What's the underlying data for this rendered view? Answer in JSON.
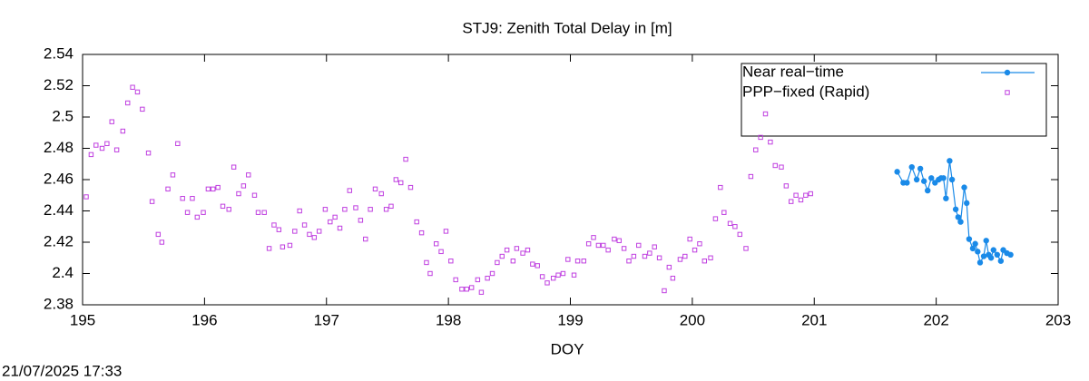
{
  "chart_data": {
    "type": "line",
    "title": "STJ9: Zenith Total Delay in [m]",
    "xlabel": "DOY",
    "timestamp": "21/07/2025 17:33",
    "xlim": [
      195,
      203
    ],
    "xticks": [
      195,
      196,
      197,
      198,
      199,
      200,
      201,
      202,
      203
    ],
    "ylim": [
      2.38,
      2.54
    ],
    "yticks": [
      2.38,
      2.4,
      2.42,
      2.44,
      2.46,
      2.48,
      2.5,
      2.52,
      2.54
    ],
    "grid": false,
    "legend": "top-right",
    "series": [
      {
        "name": "Near real−time",
        "color": "#1a8ae8",
        "line": true,
        "marker": "circle",
        "x": [
          201.68,
          201.73,
          201.76,
          201.8,
          201.84,
          201.87,
          201.9,
          201.93,
          201.96,
          201.99,
          202.02,
          202.04,
          202.06,
          202.08,
          202.11,
          202.13,
          202.16,
          202.18,
          202.2,
          202.23,
          202.25,
          202.27,
          202.3,
          202.32,
          202.34,
          202.36,
          202.39,
          202.41,
          202.43,
          202.45,
          202.47,
          202.5,
          202.53,
          202.55,
          202.58,
          202.61
        ],
        "values": [
          2.465,
          2.458,
          2.458,
          2.468,
          2.46,
          2.467,
          2.459,
          2.453,
          2.461,
          2.458,
          2.46,
          2.461,
          2.461,
          2.448,
          2.472,
          2.46,
          2.441,
          2.436,
          2.433,
          2.455,
          2.445,
          2.422,
          2.416,
          2.419,
          2.414,
          2.407,
          2.411,
          2.421,
          2.412,
          2.41,
          2.415,
          2.412,
          2.408,
          2.415,
          2.413,
          2.412
        ]
      },
      {
        "name": "PPP−fixed (Rapid)",
        "color": "#c040e0",
        "line": false,
        "marker": "square",
        "x": [
          195.03,
          195.07,
          195.11,
          195.16,
          195.2,
          195.24,
          195.28,
          195.33,
          195.37,
          195.41,
          195.45,
          195.49,
          195.54,
          195.57,
          195.62,
          195.65,
          195.7,
          195.74,
          195.78,
          195.82,
          195.86,
          195.9,
          195.94,
          195.99,
          196.03,
          196.07,
          196.11,
          196.15,
          196.2,
          196.24,
          196.28,
          196.32,
          196.36,
          196.41,
          196.44,
          196.49,
          196.53,
          196.57,
          196.61,
          196.64,
          196.7,
          196.74,
          196.78,
          196.82,
          196.86,
          196.9,
          196.94,
          196.99,
          197.03,
          197.07,
          197.11,
          197.15,
          197.19,
          197.24,
          197.28,
          197.32,
          197.36,
          197.4,
          197.45,
          197.49,
          197.53,
          197.57,
          197.61,
          197.65,
          197.69,
          197.74,
          197.78,
          197.82,
          197.85,
          197.9,
          197.94,
          197.98,
          198.02,
          198.06,
          198.11,
          198.15,
          198.19,
          198.24,
          198.27,
          198.32,
          198.36,
          198.4,
          198.44,
          198.48,
          198.53,
          198.56,
          198.61,
          198.65,
          198.69,
          198.73,
          198.77,
          198.81,
          198.86,
          198.9,
          198.94,
          198.98,
          199.03,
          199.06,
          199.11,
          199.15,
          199.19,
          199.23,
          199.27,
          199.31,
          199.36,
          199.4,
          199.44,
          199.48,
          199.52,
          199.56,
          199.61,
          199.65,
          199.69,
          199.73,
          199.77,
          199.81,
          199.84,
          199.9,
          199.94,
          199.98,
          200.02,
          200.06,
          200.1,
          200.15,
          200.19,
          200.23,
          200.26,
          200.31,
          200.35,
          200.39,
          200.44,
          200.48,
          200.52,
          200.56,
          200.6,
          200.64,
          200.68,
          200.73,
          200.77,
          200.81,
          200.85,
          200.89,
          200.93,
          200.97
        ],
        "values": [
          2.449,
          2.476,
          2.482,
          2.48,
          2.483,
          2.497,
          2.479,
          2.491,
          2.509,
          2.519,
          2.516,
          2.505,
          2.477,
          2.446,
          2.425,
          2.42,
          2.454,
          2.463,
          2.483,
          2.448,
          2.439,
          2.448,
          2.436,
          2.439,
          2.454,
          2.454,
          2.455,
          2.443,
          2.441,
          2.468,
          2.451,
          2.456,
          2.463,
          2.45,
          2.439,
          2.439,
          2.416,
          2.431,
          2.428,
          2.417,
          2.418,
          2.427,
          2.44,
          2.431,
          2.425,
          2.423,
          2.427,
          2.441,
          2.433,
          2.436,
          2.429,
          2.441,
          2.453,
          2.442,
          2.434,
          2.422,
          2.441,
          2.454,
          2.451,
          2.441,
          2.443,
          2.46,
          2.458,
          2.473,
          2.455,
          2.433,
          2.426,
          2.407,
          2.4,
          2.419,
          2.414,
          2.427,
          2.408,
          2.396,
          2.39,
          2.39,
          2.391,
          2.396,
          2.388,
          2.397,
          2.4,
          2.407,
          2.411,
          2.415,
          2.408,
          2.416,
          2.413,
          2.415,
          2.406,
          2.405,
          2.398,
          2.394,
          2.397,
          2.399,
          2.4,
          2.409,
          2.399,
          2.408,
          2.408,
          2.419,
          2.423,
          2.418,
          2.418,
          2.415,
          2.422,
          2.421,
          2.416,
          2.408,
          2.411,
          2.418,
          2.411,
          2.413,
          2.417,
          2.41,
          2.389,
          2.404,
          2.397,
          2.409,
          2.411,
          2.422,
          2.415,
          2.419,
          2.408,
          2.41,
          2.435,
          2.455,
          2.439,
          2.432,
          2.43,
          2.425,
          2.416,
          2.462,
          2.479,
          2.487,
          2.502,
          2.484,
          2.469,
          2.468,
          2.456,
          2.446,
          2.45,
          2.447,
          2.45,
          2.451
        ]
      }
    ]
  }
}
